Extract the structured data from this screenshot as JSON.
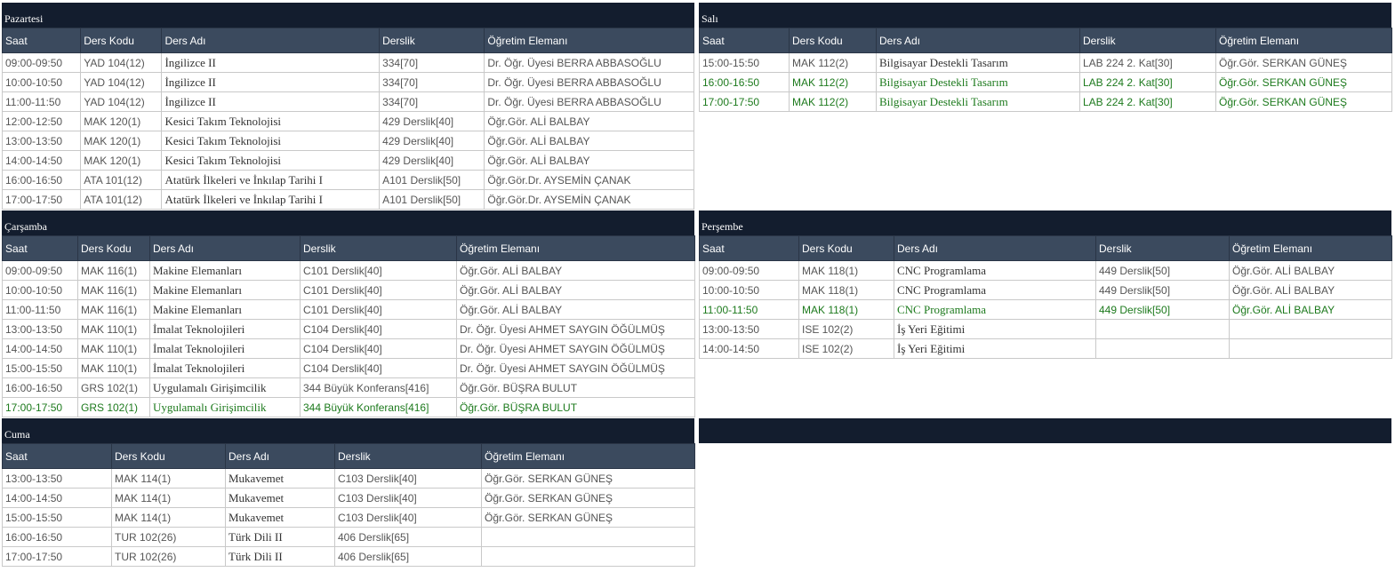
{
  "columns": [
    "Saat",
    "Ders Kodu",
    "Ders Adı",
    "Derslik",
    "Öğretim Elemanı"
  ],
  "days": {
    "pazartesi": {
      "title": "Pazartesi",
      "rows": [
        {
          "time": "09:00-09:50",
          "code": "YAD 104(12)",
          "name": "İngilizce II",
          "room": "334[70]",
          "teacher": "Dr. Öğr. Üyesi BERRA ABBASOĞLU",
          "highlight": false
        },
        {
          "time": "10:00-10:50",
          "code": "YAD 104(12)",
          "name": "İngilizce II",
          "room": "334[70]",
          "teacher": "Dr. Öğr. Üyesi BERRA ABBASOĞLU",
          "highlight": false
        },
        {
          "time": "11:00-11:50",
          "code": "YAD 104(12)",
          "name": "İngilizce II",
          "room": "334[70]",
          "teacher": "Dr. Öğr. Üyesi BERRA ABBASOĞLU",
          "highlight": false
        },
        {
          "time": "12:00-12:50",
          "code": "MAK 120(1)",
          "name": "Kesici Takım Teknolojisi",
          "room": "429 Derslik[40]",
          "teacher": "Öğr.Gör. ALİ BALBAY",
          "highlight": false
        },
        {
          "time": "13:00-13:50",
          "code": "MAK 120(1)",
          "name": "Kesici Takım Teknolojisi",
          "room": "429 Derslik[40]",
          "teacher": "Öğr.Gör. ALİ BALBAY",
          "highlight": false
        },
        {
          "time": "14:00-14:50",
          "code": "MAK 120(1)",
          "name": "Kesici Takım Teknolojisi",
          "room": "429 Derslik[40]",
          "teacher": "Öğr.Gör. ALİ BALBAY",
          "highlight": false
        },
        {
          "time": "16:00-16:50",
          "code": "ATA 101(12)",
          "name": "Atatürk İlkeleri ve İnkılap Tarihi I",
          "room": "A101 Derslik[50]",
          "teacher": "Öğr.Gör.Dr. AYSEMİN ÇANAK",
          "highlight": false
        },
        {
          "time": "17:00-17:50",
          "code": "ATA 101(12)",
          "name": "Atatürk İlkeleri ve İnkılap Tarihi I",
          "room": "A101 Derslik[50]",
          "teacher": "Öğr.Gör.Dr. AYSEMİN ÇANAK",
          "highlight": false
        }
      ]
    },
    "sali": {
      "title": "Salı",
      "rows": [
        {
          "time": "15:00-15:50",
          "code": "MAK 112(2)",
          "name": "Bilgisayar Destekli Tasarım",
          "room": "LAB 224 2. Kat[30]",
          "teacher": "Öğr.Gör. SERKAN GÜNEŞ",
          "highlight": false
        },
        {
          "time": "16:00-16:50",
          "code": "MAK 112(2)",
          "name": "Bilgisayar Destekli Tasarım",
          "room": "LAB 224 2. Kat[30]",
          "teacher": "Öğr.Gör. SERKAN GÜNEŞ",
          "highlight": true
        },
        {
          "time": "17:00-17:50",
          "code": "MAK 112(2)",
          "name": "Bilgisayar Destekli Tasarım",
          "room": "LAB 224 2. Kat[30]",
          "teacher": "Öğr.Gör. SERKAN GÜNEŞ",
          "highlight": true
        }
      ]
    },
    "carsamba": {
      "title": "Çarşamba",
      "rows": [
        {
          "time": "09:00-09:50",
          "code": "MAK 116(1)",
          "name": "Makine Elemanları",
          "room": "C101 Derslik[40]",
          "teacher": "Öğr.Gör. ALİ BALBAY",
          "highlight": false
        },
        {
          "time": "10:00-10:50",
          "code": "MAK 116(1)",
          "name": "Makine Elemanları",
          "room": "C101 Derslik[40]",
          "teacher": "Öğr.Gör. ALİ BALBAY",
          "highlight": false
        },
        {
          "time": "11:00-11:50",
          "code": "MAK 116(1)",
          "name": "Makine Elemanları",
          "room": "C101 Derslik[40]",
          "teacher": "Öğr.Gör. ALİ BALBAY",
          "highlight": false
        },
        {
          "time": "13:00-13:50",
          "code": "MAK 110(1)",
          "name": "İmalat Teknolojileri",
          "room": "C104 Derslik[40]",
          "teacher": "Dr. Öğr. Üyesi AHMET SAYGIN ÖĞÜLMÜŞ",
          "highlight": false
        },
        {
          "time": "14:00-14:50",
          "code": "MAK 110(1)",
          "name": "İmalat Teknolojileri",
          "room": "C104 Derslik[40]",
          "teacher": "Dr. Öğr. Üyesi AHMET SAYGIN ÖĞÜLMÜŞ",
          "highlight": false
        },
        {
          "time": "15:00-15:50",
          "code": "MAK 110(1)",
          "name": "İmalat Teknolojileri",
          "room": "C104 Derslik[40]",
          "teacher": "Dr. Öğr. Üyesi AHMET SAYGIN ÖĞÜLMÜŞ",
          "highlight": false
        },
        {
          "time": "16:00-16:50",
          "code": "GRS 102(1)",
          "name": "Uygulamalı Girişimcilik",
          "room": "344 Büyük Konferans[416]",
          "teacher": "Öğr.Gör. BÜŞRA BULUT",
          "highlight": false
        },
        {
          "time": "17:00-17:50",
          "code": "GRS 102(1)",
          "name": "Uygulamalı Girişimcilik",
          "room": "344 Büyük Konferans[416]",
          "teacher": "Öğr.Gör. BÜŞRA BULUT",
          "highlight": true
        }
      ]
    },
    "persembe": {
      "title": "Perşembe",
      "rows": [
        {
          "time": "09:00-09:50",
          "code": "MAK 118(1)",
          "name": "CNC Programlama",
          "room": "449 Derslik[50]",
          "teacher": "Öğr.Gör. ALİ BALBAY",
          "highlight": false
        },
        {
          "time": "10:00-10:50",
          "code": "MAK 118(1)",
          "name": "CNC Programlama",
          "room": "449 Derslik[50]",
          "teacher": "Öğr.Gör. ALİ BALBAY",
          "highlight": false
        },
        {
          "time": "11:00-11:50",
          "code": "MAK 118(1)",
          "name": "CNC Programlama",
          "room": "449 Derslik[50]",
          "teacher": "Öğr.Gör. ALİ BALBAY",
          "highlight": true
        },
        {
          "time": "13:00-13:50",
          "code": "ISE 102(2)",
          "name": "İş Yeri Eğitimi",
          "room": "",
          "teacher": "",
          "highlight": false
        },
        {
          "time": "14:00-14:50",
          "code": "ISE 102(2)",
          "name": "İş Yeri Eğitimi",
          "room": "",
          "teacher": "",
          "highlight": false
        }
      ]
    },
    "cuma": {
      "title": "Cuma",
      "rows": [
        {
          "time": "13:00-13:50",
          "code": "MAK 114(1)",
          "name": "Mukavemet",
          "room": "C103 Derslik[40]",
          "teacher": "Öğr.Gör. SERKAN GÜNEŞ",
          "highlight": false
        },
        {
          "time": "14:00-14:50",
          "code": "MAK 114(1)",
          "name": "Mukavemet",
          "room": "C103 Derslik[40]",
          "teacher": "Öğr.Gör. SERKAN GÜNEŞ",
          "highlight": false
        },
        {
          "time": "15:00-15:50",
          "code": "MAK 114(1)",
          "name": "Mukavemet",
          "room": "C103 Derslik[40]",
          "teacher": "Öğr.Gör. SERKAN GÜNEŞ",
          "highlight": false
        },
        {
          "time": "16:00-16:50",
          "code": "TUR 102(26)",
          "name": "Türk Dili II",
          "room": "406 Derslik[65]",
          "teacher": "",
          "highlight": false
        },
        {
          "time": "17:00-17:50",
          "code": "TUR 102(26)",
          "name": "Türk Dili II",
          "room": "406 Derslik[65]",
          "teacher": "",
          "highlight": false
        }
      ]
    }
  },
  "colors": {
    "day_header_bg": "#131d2e",
    "column_header_bg": "#3b4a5e",
    "highlight_text": "#1d7a1d",
    "normal_text": "#555555"
  }
}
